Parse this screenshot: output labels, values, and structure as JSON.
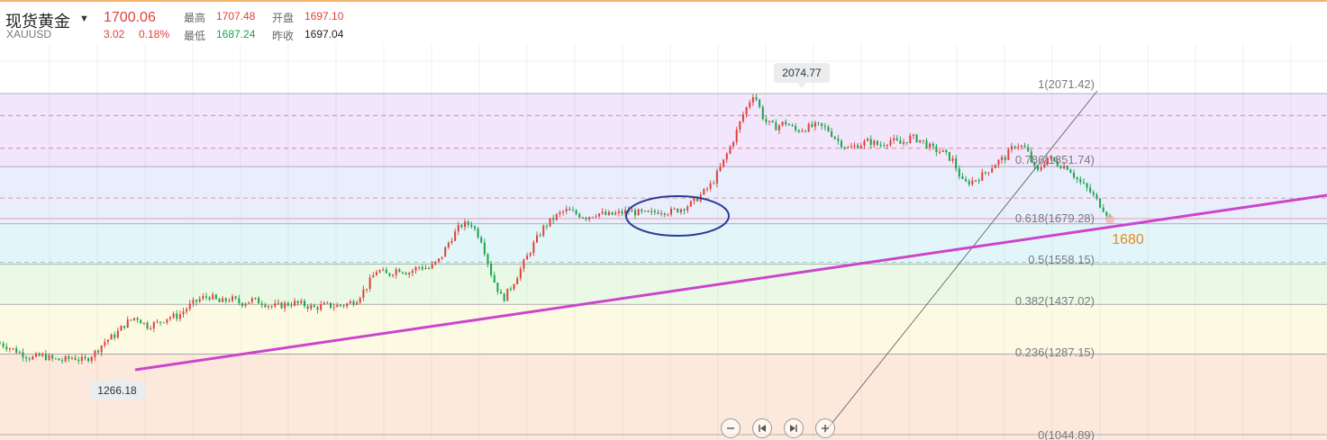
{
  "header": {
    "name": "现货黄金",
    "symbol": "XAUUSD",
    "price": "1700.06",
    "change": "3.02",
    "change_pct": "0.18%",
    "high_label": "最高",
    "high": "1707.48",
    "open_label": "开盘",
    "open": "1697.10",
    "low_label": "最低",
    "low": "1687.24",
    "prev_close_label": "昨收",
    "prev_close": "1697.04"
  },
  "colors": {
    "up": "#e0403a",
    "down": "#1aa34a",
    "trendline": "#cc44cc",
    "ellipse": "#2b3a99",
    "target": "#e8891c"
  },
  "chart_data": {
    "type": "candlestick",
    "title": "",
    "xlabel": "",
    "ylabel": "",
    "ylim": [
      1044.89,
      2160
    ],
    "fib_levels": [
      {
        "ratio": 1,
        "value": 2071.42,
        "label": "1(2071.42)"
      },
      {
        "ratio": 0.786,
        "value": 1851.74,
        "label": "0.786(1851.74)"
      },
      {
        "ratio": 0.618,
        "value": 1679.28,
        "label": "0.618(1679.28)"
      },
      {
        "ratio": 0.5,
        "value": 1558.15,
        "label": "0.5(1558.15)"
      },
      {
        "ratio": 0.382,
        "value": 1437.02,
        "label": "0.382(1437.02)"
      },
      {
        "ratio": 0.236,
        "value": 1287.15,
        "label": "0.236(1287.15)"
      },
      {
        "ratio": 0,
        "value": 1044.89,
        "label": "0(1044.89)"
      }
    ],
    "fib_zone_colors": [
      "#f1e6fb",
      "#e8eefc",
      "#e2f6fa",
      "#eaf9e6",
      "#fcfae3",
      "#fde9dc"
    ],
    "price_path": [
      1320,
      1305,
      1290,
      1275,
      1283,
      1272,
      1268,
      1278,
      1266.18,
      1290,
      1325,
      1345,
      1380,
      1400,
      1372,
      1380,
      1398,
      1402,
      1430,
      1452,
      1462,
      1442,
      1455,
      1440,
      1450,
      1444,
      1430,
      1435,
      1442,
      1436,
      1426,
      1434,
      1432,
      1436,
      1450,
      1490,
      1540,
      1525,
      1545,
      1532,
      1550,
      1545,
      1572,
      1632,
      1675,
      1680,
      1630,
      1520,
      1450,
      1500,
      1560,
      1620,
      1672,
      1700,
      1720,
      1710,
      1700,
      1712,
      1705,
      1710,
      1718,
      1712,
      1708,
      1720,
      1715,
      1725,
      1740,
      1768,
      1800,
      1860,
      1930,
      2010,
      2074.77,
      1990,
      1970,
      1985,
      1960,
      1968,
      1975,
      1965,
      1930,
      1905,
      1918,
      1928,
      1915,
      1932,
      1920,
      1940,
      1930,
      1905,
      1895,
      1870,
      1800,
      1810,
      1830,
      1860,
      1880,
      1920,
      1905,
      1830,
      1880,
      1860,
      1850,
      1808,
      1780,
      1740,
      1700.06
    ],
    "annotations": [
      {
        "text": "2074.77",
        "value": 2074.77
      },
      {
        "text": "1266.18",
        "value": 1266.18
      },
      {
        "text": "1680",
        "value": 1680
      }
    ]
  },
  "controls": [
    "zoom-out",
    "previous",
    "next",
    "add"
  ]
}
